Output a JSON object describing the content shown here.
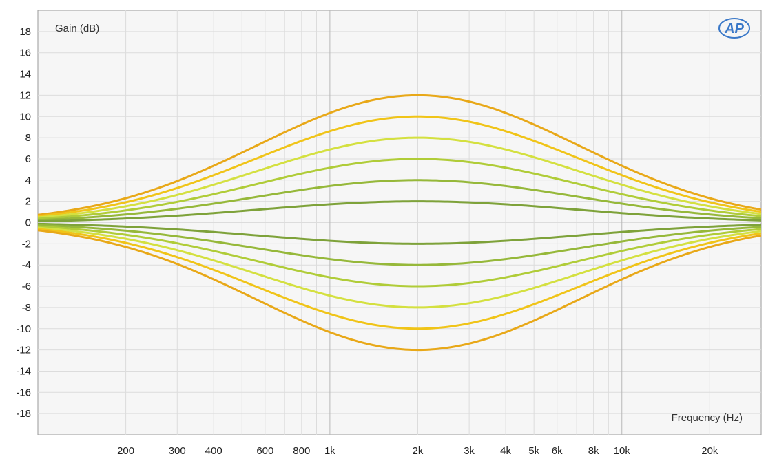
{
  "chart_data": {
    "type": "line",
    "ylabel": "Gain (dB)",
    "xlabel": "Frequency (Hz)",
    "x_scale": "log",
    "xlim": [
      100,
      30000
    ],
    "ylim": [
      -20,
      20
    ],
    "y_ticks": [
      18,
      16,
      14,
      12,
      10,
      8,
      6,
      4,
      2,
      0,
      -2,
      -4,
      -6,
      -8,
      -10,
      -12,
      -14,
      -16,
      -18
    ],
    "x_ticks": [
      {
        "value": 200,
        "label": "200"
      },
      {
        "value": 300,
        "label": "300"
      },
      {
        "value": 400,
        "label": "400"
      },
      {
        "value": 600,
        "label": "600"
      },
      {
        "value": 800,
        "label": "800"
      },
      {
        "value": 1000,
        "label": "1k"
      },
      {
        "value": 2000,
        "label": "2k"
      },
      {
        "value": 3000,
        "label": "3k"
      },
      {
        "value": 4000,
        "label": "4k"
      },
      {
        "value": 5000,
        "label": "5k"
      },
      {
        "value": 6000,
        "label": "6k"
      },
      {
        "value": 8000,
        "label": "8k"
      },
      {
        "value": 10000,
        "label": "10k"
      },
      {
        "value": 20000,
        "label": "20k"
      }
    ],
    "center_frequency": 2000,
    "series": [
      {
        "peak_gain": 12,
        "color": "#e8a818"
      },
      {
        "peak_gain": 10,
        "color": "#f0c418"
      },
      {
        "peak_gain": 8,
        "color": "#d4e040"
      },
      {
        "peak_gain": 6,
        "color": "#b0cc38"
      },
      {
        "peak_gain": 4,
        "color": "#96b83a"
      },
      {
        "peak_gain": 2,
        "color": "#7ea23a"
      },
      {
        "peak_gain": -2,
        "color": "#7ea23a"
      },
      {
        "peak_gain": -4,
        "color": "#96b83a"
      },
      {
        "peak_gain": -6,
        "color": "#b0cc38"
      },
      {
        "peak_gain": -8,
        "color": "#d4e040"
      },
      {
        "peak_gain": -10,
        "color": "#f0c418"
      },
      {
        "peak_gain": -12,
        "color": "#e8a818"
      }
    ],
    "grid": true
  },
  "logo": {
    "text": "AP"
  },
  "colors": {
    "plot_background": "#f6f6f6",
    "grid_minor": "#dcdcdc",
    "grid_major": "#b8b8b8"
  }
}
